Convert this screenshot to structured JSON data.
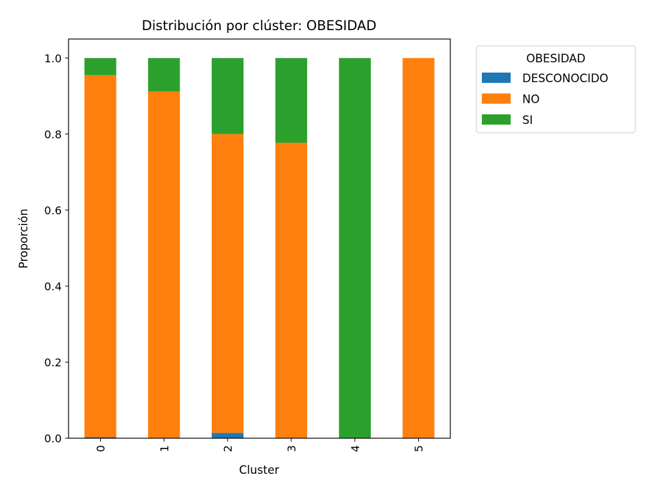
{
  "chart_data": {
    "type": "bar",
    "stacked": true,
    "title": "Distribución por clúster: OBESIDAD",
    "xlabel": "Cluster",
    "ylabel": "Proporción",
    "categories": [
      "0",
      "1",
      "2",
      "3",
      "4",
      "5"
    ],
    "series": [
      {
        "name": "DESCONOCIDO",
        "color": "#1f77b4",
        "values": [
          0.003,
          0.0,
          0.014,
          0.0,
          0.0,
          0.0
        ]
      },
      {
        "name": "NO",
        "color": "#ff7f0e",
        "values": [
          0.952,
          0.912,
          0.786,
          0.777,
          0.0,
          1.0
        ]
      },
      {
        "name": "SI",
        "color": "#2ca02c",
        "values": [
          0.045,
          0.088,
          0.2,
          0.223,
          1.0,
          0.0
        ]
      }
    ],
    "ylim": [
      0,
      1.05
    ],
    "yticks": [
      "0.0",
      "0.2",
      "0.4",
      "0.6",
      "0.8",
      "1.0"
    ],
    "ytick_values": [
      0,
      0.2,
      0.4,
      0.6,
      0.8,
      1.0
    ],
    "legend": {
      "title": "OBESIDAD",
      "placement": "outside-top-right"
    },
    "grid": false
  }
}
